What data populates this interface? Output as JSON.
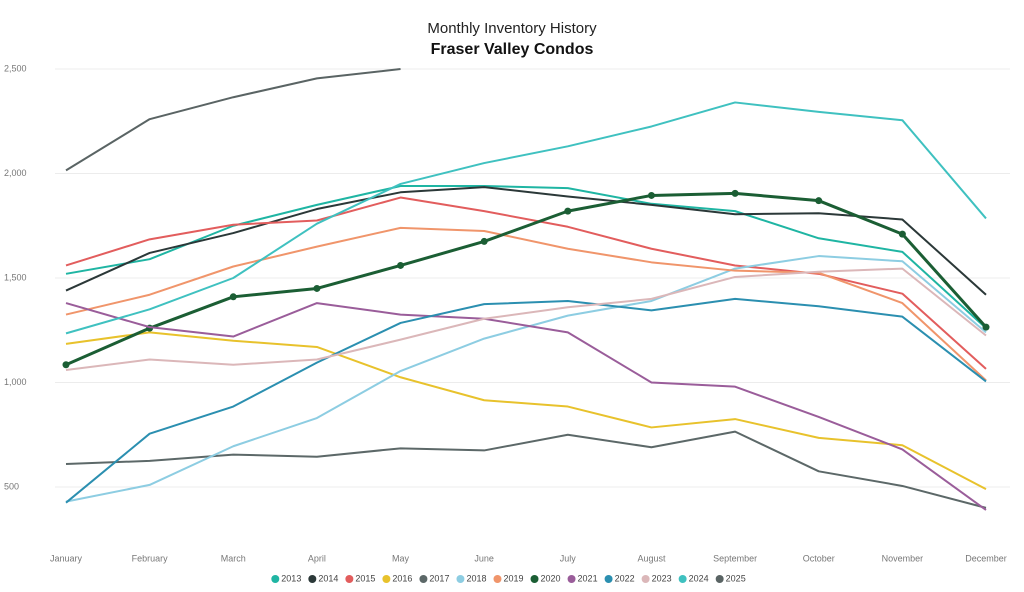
{
  "chart_data": {
    "type": "line",
    "title": "Monthly Inventory History",
    "subtitle": "Fraser Valley Condos",
    "categories": [
      "January",
      "February",
      "March",
      "April",
      "May",
      "June",
      "July",
      "August",
      "September",
      "October",
      "November",
      "December"
    ],
    "ylim": [
      300,
      2550
    ],
    "yticks": [
      500,
      {
        "value": 1000,
        "label": "1,000"
      },
      {
        "value": 1500,
        "label": "1,500"
      },
      {
        "value": 2000,
        "label": "2,000"
      },
      {
        "value": 2500,
        "label": "2,500"
      }
    ],
    "grid": true,
    "legend": "bottom",
    "series": [
      {
        "name": "2013",
        "color": "#1fb5a3",
        "values": [
          1520,
          1590,
          1750,
          1850,
          1940,
          1940,
          1930,
          1855,
          1820,
          1690,
          1625,
          1260
        ]
      },
      {
        "name": "2014",
        "color": "#2b3838",
        "values": [
          1440,
          1620,
          1715,
          1830,
          1910,
          1935,
          1890,
          1850,
          1805,
          1810,
          1780,
          1420
        ]
      },
      {
        "name": "2015",
        "color": "#e25d5d",
        "values": [
          1560,
          1685,
          1755,
          1775,
          1885,
          1820,
          1745,
          1640,
          1560,
          1520,
          1425,
          1065
        ]
      },
      {
        "name": "2016",
        "color": "#e8c22c",
        "values": [
          1185,
          1240,
          1200,
          1170,
          1025,
          915,
          885,
          785,
          825,
          735,
          700,
          490
        ]
      },
      {
        "name": "2017",
        "color": "#5c6868",
        "values": [
          610,
          625,
          655,
          645,
          685,
          675,
          750,
          690,
          765,
          575,
          505,
          400
        ]
      },
      {
        "name": "2018",
        "color": "#8dcde2",
        "values": [
          430,
          510,
          695,
          830,
          1055,
          1210,
          1320,
          1390,
          1545,
          1605,
          1580,
          1240
        ]
      },
      {
        "name": "2019",
        "color": "#f0956b",
        "values": [
          1325,
          1420,
          1555,
          1650,
          1740,
          1725,
          1640,
          1575,
          1535,
          1525,
          1380,
          1010
        ]
      },
      {
        "name": "2020",
        "color": "#1b5e34",
        "marker": true,
        "values": [
          1085,
          1260,
          1410,
          1450,
          1560,
          1675,
          1820,
          1895,
          1905,
          1870,
          1710,
          1265
        ]
      },
      {
        "name": "2021",
        "color": "#9a5d9a",
        "values": [
          1380,
          1265,
          1220,
          1380,
          1325,
          1305,
          1240,
          1000,
          980,
          835,
          680,
          390
        ]
      },
      {
        "name": "2022",
        "color": "#2b8fb0",
        "values": [
          425,
          755,
          885,
          1095,
          1285,
          1375,
          1390,
          1345,
          1400,
          1365,
          1315,
          1005
        ]
      },
      {
        "name": "2023",
        "color": "#dbb7b9",
        "values": [
          1060,
          1110,
          1085,
          1110,
          1205,
          1305,
          1360,
          1400,
          1505,
          1530,
          1545,
          1225
        ]
      },
      {
        "name": "2024",
        "color": "#3fc1c0",
        "values": [
          1235,
          1350,
          1500,
          1760,
          1950,
          2050,
          2130,
          2225,
          2340,
          2295,
          2255,
          1785
        ]
      },
      {
        "name": "2025",
        "color": "#5a6464",
        "values": [
          2015,
          2260,
          2365,
          2455,
          2500,
          null,
          null,
          null,
          null,
          null,
          null,
          null
        ]
      }
    ]
  }
}
